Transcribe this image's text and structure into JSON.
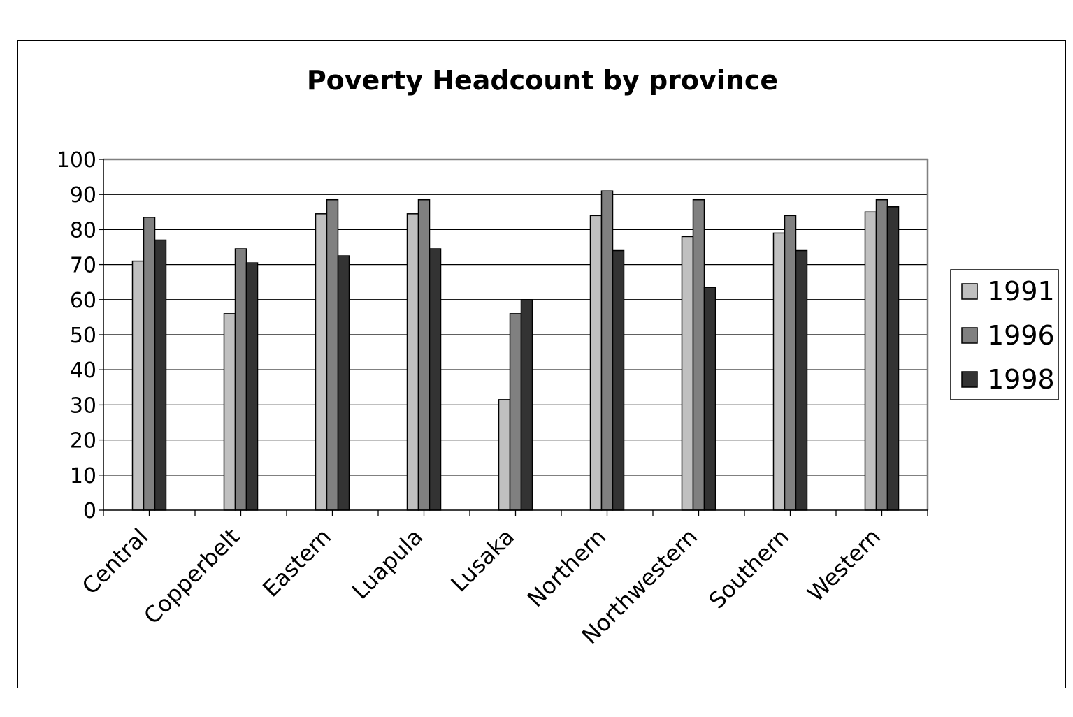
{
  "chart_data": {
    "type": "bar",
    "title": "Poverty Headcount  by province",
    "xlabel": "",
    "ylabel": "",
    "ylim": [
      0,
      100
    ],
    "yticks": [
      0,
      10,
      20,
      30,
      40,
      50,
      60,
      70,
      80,
      90,
      100
    ],
    "grid": true,
    "legend_position": "right",
    "categories": [
      "Central",
      "Copperbelt",
      "Eastern",
      "Luapula",
      "Lusaka",
      "Northern",
      "Northwestern",
      "Southern",
      "Western"
    ],
    "series": [
      {
        "name": "1991",
        "color": "#c0c0c0",
        "values": [
          71,
          56,
          84.5,
          84.5,
          31.5,
          84,
          78,
          79,
          85
        ]
      },
      {
        "name": "1996",
        "color": "#808080",
        "values": [
          83.5,
          74.5,
          88.5,
          88.5,
          56,
          91,
          88.5,
          84,
          88.5
        ]
      },
      {
        "name": "1998",
        "color": "#333333",
        "values": [
          77,
          70.5,
          72.5,
          74.5,
          60,
          74,
          63.5,
          74,
          86.5
        ]
      }
    ]
  }
}
